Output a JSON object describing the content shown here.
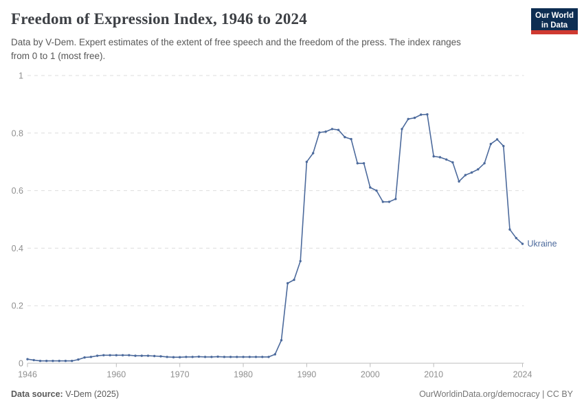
{
  "header": {
    "title": "Freedom of Expression Index, 1946 to 2024",
    "subtitle": "Data by V-Dem. Expert estimates of the extent of free speech and the freedom of the press. The index ranges\nfrom 0 to 1 (most free).",
    "logo": {
      "line1": "Our World",
      "line2": "in Data",
      "bg_color": "#0d2d52",
      "accent_color": "#cf3a31"
    }
  },
  "chart_data": {
    "type": "line",
    "title": "Freedom of Expression Index, 1946 to 2024",
    "xlabel": "",
    "ylabel": "",
    "xlim": [
      1946,
      2024
    ],
    "ylim": [
      0,
      1
    ],
    "x_ticks": [
      1946,
      1960,
      1970,
      1980,
      1990,
      2000,
      2010,
      2024
    ],
    "y_ticks": [
      0,
      0.2,
      0.4,
      0.6,
      0.8,
      1
    ],
    "grid": "horizontal-dashed",
    "legend_position": "end-of-line-label",
    "end_label": "Ukraine",
    "colors": {
      "line": "#4C6A9C",
      "grid": "#dddddd",
      "axis": "#bcbcbc",
      "tick_label": "#8f8f8f"
    },
    "series": [
      {
        "name": "Ukraine",
        "color": "#4C6A9C",
        "x_start": 1946,
        "x_step": 1,
        "values": [
          0.014,
          0.011,
          0.008,
          0.008,
          0.008,
          0.008,
          0.008,
          0.008,
          0.013,
          0.02,
          0.022,
          0.026,
          0.028,
          0.028,
          0.028,
          0.028,
          0.028,
          0.026,
          0.026,
          0.026,
          0.025,
          0.024,
          0.022,
          0.021,
          0.021,
          0.022,
          0.022,
          0.023,
          0.022,
          0.022,
          0.023,
          0.022,
          0.022,
          0.022,
          0.022,
          0.022,
          0.022,
          0.022,
          0.022,
          0.031,
          0.08,
          0.278,
          0.29,
          0.355,
          0.7,
          0.73,
          0.802,
          0.805,
          0.814,
          0.811,
          0.786,
          0.779,
          0.695,
          0.695,
          0.611,
          0.6,
          0.561,
          0.561,
          0.571,
          0.814,
          0.849,
          0.853,
          0.864,
          0.865,
          0.719,
          0.716,
          0.708,
          0.698,
          0.632,
          0.654,
          0.663,
          0.674,
          0.695,
          0.762,
          0.778,
          0.755,
          0.465,
          0.435,
          0.415
        ]
      }
    ]
  },
  "footer": {
    "source_label": "Data source:",
    "source_value": "V-Dem (2025)",
    "right_text": "OurWorldinData.org/democracy | CC BY"
  }
}
